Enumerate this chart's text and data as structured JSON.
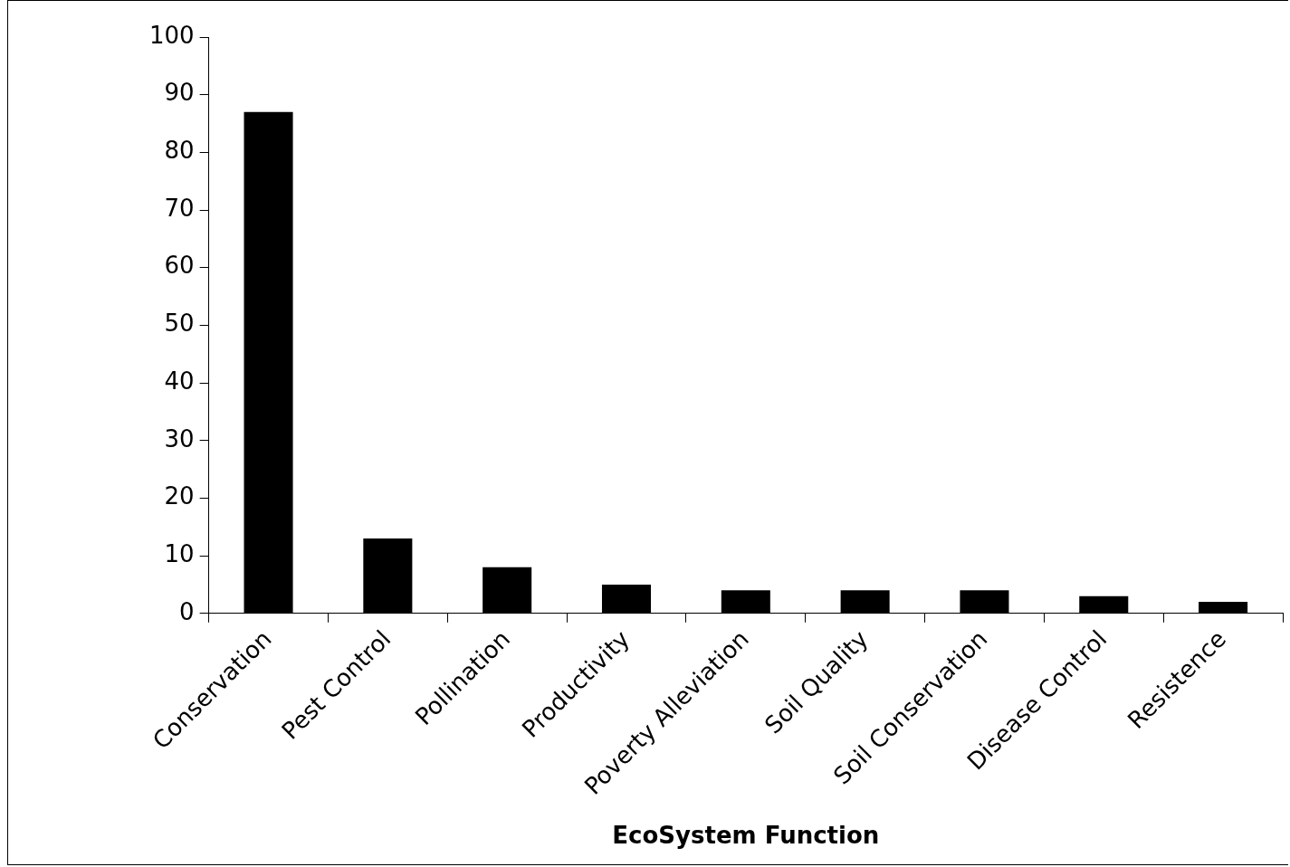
{
  "chart_data": {
    "type": "bar",
    "xlabel": "EcoSystem Function",
    "categories": [
      "Conservation",
      "Pest Control",
      "Pollination",
      "Productivity",
      "Poverty Alleviation",
      "Soil Quality",
      "Soil Conservation",
      "Disease Control",
      "Resistence"
    ],
    "values": [
      87,
      13,
      8,
      5,
      4,
      4,
      4,
      3,
      2
    ],
    "color": "#000000",
    "ylim": [
      0,
      100
    ],
    "yticks": [
      0,
      10,
      20,
      30,
      40,
      50,
      60,
      70,
      80,
      90,
      100
    ],
    "grid": false
  }
}
